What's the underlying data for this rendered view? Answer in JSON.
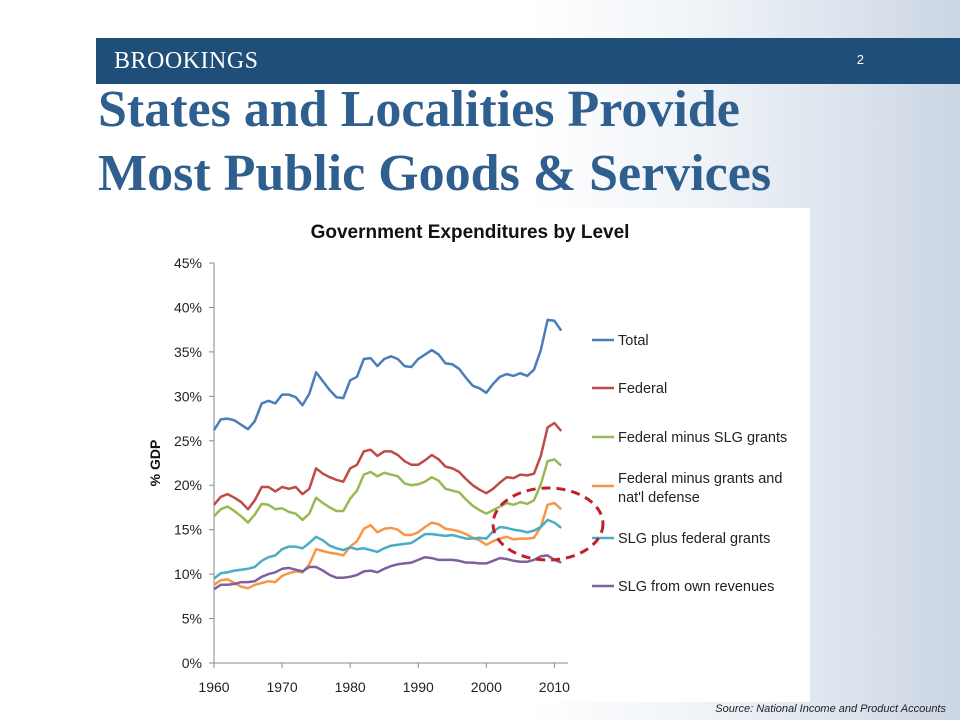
{
  "header": {
    "brand": "BROOKINGS",
    "page_number": "2",
    "title_line1": "States and Localities Provide",
    "title_line2": "Most Public Goods & Services"
  },
  "source_note": "Source:  National Income and Product Accounts",
  "colors": {
    "bar": "#1f4e79",
    "title": "#2e5f8f",
    "highlight_ellipse": "#c0202a"
  },
  "chart_data": {
    "type": "line",
    "title": "Government Expenditures by Level",
    "xlabel": "",
    "ylabel": "% GDP",
    "xlim": [
      1960,
      2012
    ],
    "ylim": [
      0,
      45
    ],
    "x_ticks": [
      1960,
      1970,
      1980,
      1990,
      2000,
      2010
    ],
    "x_tick_labels": [
      "1960",
      "1970",
      "1980",
      "1990",
      "2000",
      "2010"
    ],
    "y_ticks": [
      0,
      5,
      10,
      15,
      20,
      25,
      30,
      35,
      40,
      45
    ],
    "y_tick_labels": [
      "0%",
      "5%",
      "10%",
      "15%",
      "20%",
      "25%",
      "30%",
      "35%",
      "40%",
      "45%"
    ],
    "grid": false,
    "legend_position": "right",
    "annotation": "red dashed ellipse around 2000-2010 crossover of lower series",
    "x": [
      1960,
      1961,
      1962,
      1963,
      1964,
      1965,
      1966,
      1967,
      1968,
      1969,
      1970,
      1971,
      1972,
      1973,
      1974,
      1975,
      1976,
      1977,
      1978,
      1979,
      1980,
      1981,
      1982,
      1983,
      1984,
      1985,
      1986,
      1987,
      1988,
      1989,
      1990,
      1991,
      1992,
      1993,
      1994,
      1995,
      1996,
      1997,
      1998,
      1999,
      2000,
      2001,
      2002,
      2003,
      2004,
      2005,
      2006,
      2007,
      2008,
      2009,
      2010,
      2011
    ],
    "series": [
      {
        "name": "Total",
        "color": "#4a7ebb",
        "values": [
          26.2,
          27.4,
          27.5,
          27.3,
          26.8,
          26.3,
          27.2,
          29.2,
          29.5,
          29.2,
          30.2,
          30.2,
          29.9,
          29.0,
          30.3,
          32.7,
          31.7,
          30.7,
          29.9,
          29.8,
          31.8,
          32.2,
          34.2,
          34.3,
          33.4,
          34.2,
          34.5,
          34.2,
          33.4,
          33.3,
          34.2,
          34.7,
          35.2,
          34.7,
          33.7,
          33.6,
          33.1,
          32.1,
          31.2,
          30.9,
          30.4,
          31.4,
          32.2,
          32.5,
          32.3,
          32.6,
          32.3,
          33.0,
          35.2,
          38.6,
          38.5,
          37.4
        ]
      },
      {
        "name": "Federal",
        "color": "#be4b48",
        "values": [
          17.8,
          18.7,
          19.0,
          18.6,
          18.1,
          17.3,
          18.3,
          19.8,
          19.8,
          19.3,
          19.8,
          19.6,
          19.8,
          19.0,
          19.6,
          21.9,
          21.3,
          20.9,
          20.6,
          20.4,
          21.9,
          22.3,
          23.8,
          24.0,
          23.3,
          23.8,
          23.8,
          23.4,
          22.7,
          22.3,
          22.3,
          22.8,
          23.4,
          22.9,
          22.1,
          21.9,
          21.5,
          20.7,
          20.0,
          19.5,
          19.1,
          19.6,
          20.3,
          20.9,
          20.8,
          21.2,
          21.1,
          21.3,
          23.3,
          26.5,
          27.0,
          26.1
        ]
      },
      {
        "name": "Federal minus SLG grants",
        "color": "#98b954",
        "values": [
          16.5,
          17.3,
          17.6,
          17.1,
          16.5,
          15.8,
          16.7,
          17.9,
          17.8,
          17.3,
          17.4,
          17.0,
          16.8,
          16.1,
          16.8,
          18.6,
          18.0,
          17.5,
          17.1,
          17.1,
          18.5,
          19.4,
          21.2,
          21.5,
          21.0,
          21.4,
          21.2,
          21.0,
          20.2,
          20.0,
          20.1,
          20.4,
          20.9,
          20.5,
          19.6,
          19.4,
          19.2,
          18.4,
          17.7,
          17.2,
          16.8,
          17.2,
          17.6,
          18.0,
          17.8,
          18.1,
          17.9,
          18.3,
          20.1,
          22.7,
          22.9,
          22.2
        ]
      },
      {
        "name": "Federal minus grants and nat'l defense",
        "color": "#f79646",
        "values": [
          8.8,
          9.3,
          9.4,
          9.0,
          8.6,
          8.4,
          8.8,
          9.0,
          9.2,
          9.1,
          9.8,
          10.1,
          10.3,
          10.2,
          11.1,
          12.8,
          12.6,
          12.4,
          12.3,
          12.1,
          13.1,
          13.7,
          15.1,
          15.5,
          14.7,
          15.1,
          15.2,
          15.0,
          14.4,
          14.4,
          14.7,
          15.3,
          15.8,
          15.6,
          15.1,
          15.0,
          14.8,
          14.5,
          14.1,
          13.8,
          13.3,
          13.7,
          14.0,
          14.2,
          13.9,
          14.0,
          14.0,
          14.1,
          15.3,
          17.8,
          18.0,
          17.3
        ]
      },
      {
        "name": "SLG plus federal grants",
        "color": "#4bacc6",
        "values": [
          9.5,
          10.1,
          10.2,
          10.4,
          10.5,
          10.6,
          10.8,
          11.5,
          11.9,
          12.1,
          12.8,
          13.1,
          13.1,
          12.9,
          13.5,
          14.2,
          13.8,
          13.2,
          12.9,
          12.7,
          13.0,
          12.8,
          12.9,
          12.7,
          12.5,
          12.9,
          13.2,
          13.3,
          13.4,
          13.5,
          14.0,
          14.5,
          14.5,
          14.4,
          14.3,
          14.4,
          14.2,
          14.0,
          14.0,
          14.1,
          14.0,
          14.8,
          15.3,
          15.2,
          15.0,
          14.9,
          14.7,
          14.9,
          15.3,
          16.1,
          15.8,
          15.2
        ]
      },
      {
        "name": "SLG from own revenues",
        "color": "#7d60a0",
        "values": [
          8.3,
          8.8,
          8.8,
          8.9,
          9.1,
          9.1,
          9.2,
          9.7,
          10.0,
          10.2,
          10.6,
          10.7,
          10.5,
          10.3,
          10.8,
          10.8,
          10.4,
          9.9,
          9.6,
          9.6,
          9.7,
          9.9,
          10.3,
          10.4,
          10.2,
          10.6,
          10.9,
          11.1,
          11.2,
          11.3,
          11.6,
          11.9,
          11.8,
          11.6,
          11.6,
          11.6,
          11.5,
          11.3,
          11.3,
          11.2,
          11.2,
          11.5,
          11.8,
          11.7,
          11.5,
          11.4,
          11.4,
          11.6,
          12.0,
          12.1,
          11.6,
          11.3
        ]
      }
    ]
  }
}
